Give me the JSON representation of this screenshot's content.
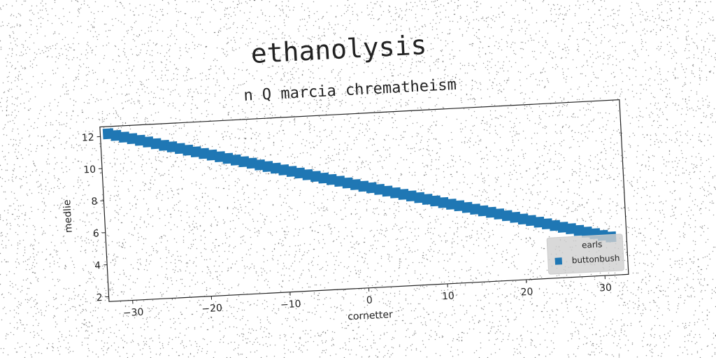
{
  "chart_data": {
    "type": "scatter",
    "title": "ethanolysis",
    "subtitle": "n Q marcia chrematheism",
    "xlabel": "cornetter",
    "ylabel": "medlie",
    "xlim": [
      -33,
      33
    ],
    "ylim": [
      1.7,
      12.6
    ],
    "xticks": [
      -30,
      -20,
      -10,
      0,
      10,
      20,
      30
    ],
    "xtick_labels": [
      "−30",
      "−20",
      "−10",
      "0",
      "10",
      "20",
      "30"
    ],
    "yticks": [
      2,
      4,
      6,
      8,
      10,
      12
    ],
    "ytick_labels": [
      "2",
      "4",
      "6",
      "8",
      "10",
      "12"
    ],
    "grid": false,
    "legend": {
      "title": "earls",
      "placement": "lower-right"
    },
    "series": [
      {
        "name": "buttonbush",
        "color": "#1f77b4",
        "marker": "square",
        "x": [
          -32,
          -31,
          -30,
          -29,
          -28,
          -27,
          -26,
          -25,
          -24,
          -23,
          -22,
          -21,
          -20,
          -19,
          -18,
          -17,
          -16,
          -15,
          -14,
          -13,
          -12,
          -11,
          -10,
          -9,
          -8,
          -7,
          -6,
          -5,
          -4,
          -3,
          -2,
          -1,
          0,
          1,
          2,
          3,
          4,
          5,
          6,
          7,
          8,
          9,
          10,
          11,
          12,
          13,
          14,
          15,
          16,
          17,
          18,
          19,
          20,
          21,
          22,
          23,
          24,
          25,
          26,
          27,
          28,
          29,
          30,
          31
        ],
        "y": [
          12.15,
          12.02,
          11.89,
          11.77,
          11.64,
          11.51,
          11.38,
          11.25,
          11.13,
          11.0,
          10.87,
          10.74,
          10.61,
          10.49,
          10.36,
          10.23,
          10.1,
          9.97,
          9.85,
          9.72,
          9.59,
          9.46,
          9.33,
          9.21,
          9.08,
          8.95,
          8.82,
          8.69,
          8.57,
          8.44,
          8.31,
          8.18,
          8.05,
          7.93,
          7.8,
          7.67,
          7.54,
          7.41,
          7.29,
          7.16,
          7.03,
          6.9,
          6.77,
          6.65,
          6.52,
          6.39,
          6.26,
          6.13,
          6.01,
          5.88,
          5.75,
          5.62,
          5.49,
          5.37,
          5.24,
          5.11,
          4.98,
          4.85,
          4.73,
          4.6,
          4.47,
          4.34,
          4.21,
          4.09
        ]
      }
    ]
  }
}
